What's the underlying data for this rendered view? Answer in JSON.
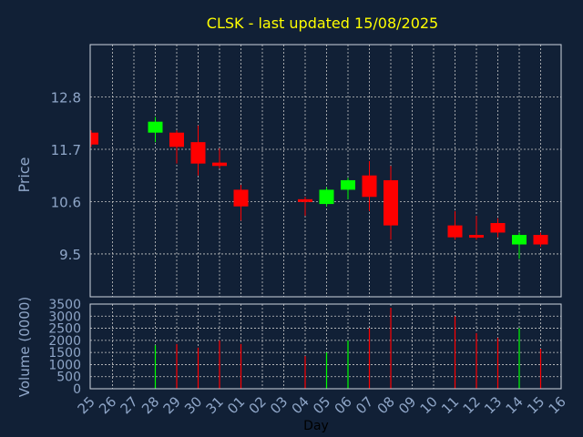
{
  "chart_data": {
    "type": "candlestick",
    "title": "CLSK - last updated 15/08/2025",
    "xlabel": "Day",
    "ylabel_price": "Price",
    "ylabel_volume": "Volume (0000)",
    "price_ticks": [
      12.8,
      11.7,
      10.6,
      9.5
    ],
    "price_tick_labels": [
      "12.8",
      "11.7",
      "10.6",
      "9.5"
    ],
    "price_ylim": [
      8.6,
      13.9
    ],
    "volume_ticks": [
      0,
      500,
      1000,
      1500,
      2000,
      2500,
      3000,
      3500
    ],
    "volume_tick_labels": [
      "0",
      "500",
      "1000",
      "1500",
      "2000",
      "2500",
      "3000",
      "3500"
    ],
    "volume_ylim": [
      0,
      3500
    ],
    "x_tick_labels": [
      "25",
      "26",
      "27",
      "28",
      "29",
      "30",
      "31",
      "01",
      "02",
      "03",
      "04",
      "05",
      "06",
      "07",
      "08",
      "09",
      "10",
      "11",
      "12",
      "13",
      "14",
      "15",
      "16"
    ],
    "candles": [
      {
        "x": 0,
        "open": 12.05,
        "close": 11.8,
        "high": 12.1,
        "low": 11.75,
        "volume": 0
      },
      {
        "x": 3,
        "open": 12.05,
        "close": 12.28,
        "high": 12.38,
        "low": 11.85,
        "volume": 1800
      },
      {
        "x": 4,
        "open": 12.05,
        "close": 11.75,
        "high": 12.1,
        "low": 11.4,
        "volume": 1850
      },
      {
        "x": 5,
        "open": 11.85,
        "close": 11.4,
        "high": 12.2,
        "low": 11.15,
        "volume": 1700
      },
      {
        "x": 6,
        "open": 11.42,
        "close": 11.35,
        "high": 11.72,
        "low": 11.3,
        "volume": 2000
      },
      {
        "x": 7,
        "open": 10.85,
        "close": 10.5,
        "high": 10.95,
        "low": 10.2,
        "volume": 1850
      },
      {
        "x": 10,
        "open": 10.65,
        "close": 10.62,
        "high": 10.7,
        "low": 10.3,
        "volume": 1350
      },
      {
        "x": 11,
        "open": 10.55,
        "close": 10.85,
        "high": 10.9,
        "low": 10.5,
        "volume": 1500
      },
      {
        "x": 12,
        "open": 10.85,
        "close": 11.05,
        "high": 11.1,
        "low": 10.65,
        "volume": 2000
      },
      {
        "x": 13,
        "open": 11.15,
        "close": 10.7,
        "high": 11.45,
        "low": 10.4,
        "volume": 2500
      },
      {
        "x": 14,
        "open": 11.05,
        "close": 10.1,
        "high": 11.35,
        "low": 9.8,
        "volume": 3350
      },
      {
        "x": 17,
        "open": 10.1,
        "close": 9.85,
        "high": 10.4,
        "low": 9.8,
        "volume": 3000
      },
      {
        "x": 18,
        "open": 9.9,
        "close": 9.85,
        "high": 10.3,
        "low": 9.8,
        "volume": 2300
      },
      {
        "x": 19,
        "open": 10.15,
        "close": 9.95,
        "high": 10.25,
        "low": 9.85,
        "volume": 2100
      },
      {
        "x": 20,
        "open": 9.7,
        "close": 9.9,
        "high": 9.95,
        "low": 9.4,
        "volume": 2500
      },
      {
        "x": 21,
        "open": 9.9,
        "close": 9.7,
        "high": 9.95,
        "low": 9.65,
        "volume": 1650
      }
    ],
    "grid": true,
    "colors": {
      "background": "#112036",
      "up": "#00ff00",
      "down": "#ff0000",
      "grid": "#c8c8c8",
      "title": "#ffff00",
      "axis_text": "#8fa6c8",
      "frame": "#cfd6e0"
    }
  }
}
